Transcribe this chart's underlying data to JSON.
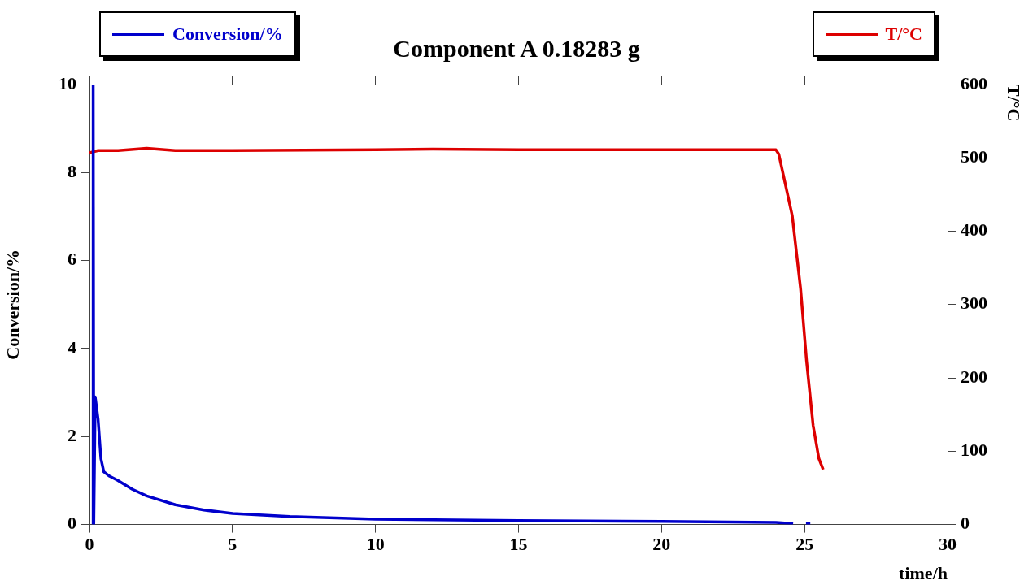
{
  "chart_data": {
    "type": "line",
    "title": "Component A 0.18283 g",
    "xlabel": "time/h",
    "ylabel": "Conversion/%",
    "y2label": "T/°C",
    "xlim": [
      0,
      30
    ],
    "xticks": [
      0,
      5,
      10,
      15,
      20,
      25,
      30
    ],
    "ylim": [
      0,
      10
    ],
    "yticks": [
      0,
      2,
      4,
      6,
      8,
      10
    ],
    "y2lim": [
      0,
      600
    ],
    "y2ticks": [
      0,
      100,
      200,
      300,
      400,
      500,
      600
    ],
    "grid": false,
    "legend": "top",
    "marker": "none",
    "line_style": "solid",
    "series": [
      {
        "name": "Conversion/%",
        "color": "#0000cc",
        "x": [
          0.12,
          0.13,
          0.15,
          0.2,
          0.3,
          0.4,
          0.5,
          0.7,
          1,
          1.5,
          2,
          3,
          4,
          5,
          7,
          10,
          15,
          20,
          24,
          24.6,
          24.9,
          25.05,
          25.2
        ],
        "values": [
          0,
          10,
          0,
          2.9,
          2.4,
          1.5,
          1.2,
          1.1,
          1.0,
          0.8,
          0.65,
          0.45,
          0.33,
          0.25,
          0.18,
          0.12,
          0.09,
          0.07,
          0.05,
          0.02,
          null,
          0.02,
          0.02
        ]
      },
      {
        "name": "T/°C",
        "color": "#dd0000",
        "axis": "y2",
        "x": [
          0,
          0.3,
          1,
          2,
          3,
          5,
          10,
          12,
          15,
          20,
          24,
          24.1,
          24.57,
          24.86,
          25.07,
          25.3,
          25.5,
          25.65
        ],
        "values": [
          507,
          510,
          510,
          513,
          510,
          510,
          511,
          512,
          511,
          511,
          511,
          505,
          421,
          322,
          223,
          135,
          90,
          75
        ]
      }
    ]
  }
}
